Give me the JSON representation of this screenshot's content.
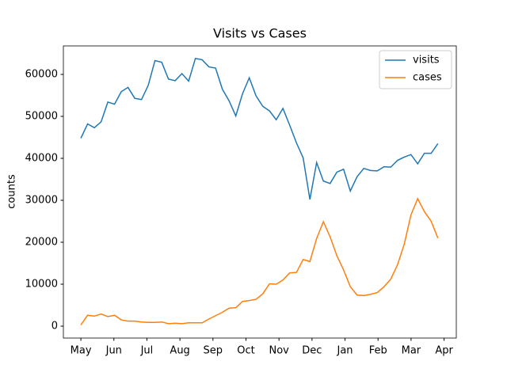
{
  "chart_data": {
    "type": "line",
    "title": "Visits vs Cases",
    "ylabel": "counts",
    "x": [
      0,
      0.204,
      0.408,
      0.612,
      0.816,
      1.02,
      1.224,
      1.428,
      1.632,
      1.836,
      2.04,
      2.244,
      2.448,
      2.652,
      2.856,
      3.06,
      3.264,
      3.468,
      3.672,
      3.876,
      4.08,
      4.284,
      4.488,
      4.692,
      4.896,
      5.1,
      5.304,
      5.508,
      5.712,
      5.916,
      6.12,
      6.324,
      6.528,
      6.732,
      6.936,
      7.14,
      7.344,
      7.548,
      7.752,
      7.956,
      8.16,
      8.364,
      8.568,
      8.772,
      8.976,
      9.18,
      9.384,
      9.588,
      9.792,
      9.996,
      10.2,
      10.404,
      10.608,
      10.812
    ],
    "series": [
      {
        "name": "visits",
        "color": "#1f77b4",
        "values": [
          44800,
          48200,
          47300,
          48700,
          53400,
          52900,
          55900,
          56900,
          54300,
          54000,
          57400,
          63300,
          62900,
          58900,
          58500,
          60200,
          58400,
          63800,
          63500,
          61800,
          61500,
          56500,
          53700,
          50100,
          55400,
          59200,
          54900,
          52400,
          51300,
          49200,
          51900,
          47900,
          43700,
          40100,
          30200,
          39000,
          34600,
          34000,
          36700,
          37400,
          32200,
          35600,
          37600,
          37100,
          37000,
          38000,
          37900,
          39500,
          40300,
          40900,
          38700,
          41200,
          41200,
          43500
        ]
      },
      {
        "name": "cases",
        "color": "#ff7f0e",
        "values": [
          300,
          2600,
          2400,
          2900,
          2300,
          2600,
          1500,
          1200,
          1200,
          1000,
          900,
          900,
          1000,
          600,
          700,
          600,
          800,
          800,
          800,
          1700,
          2500,
          3300,
          4300,
          4400,
          5900,
          6100,
          6400,
          7700,
          10100,
          10000,
          11000,
          12700,
          12800,
          15900,
          15400,
          20900,
          24900,
          21300,
          16800,
          13400,
          9400,
          7400,
          7300,
          7600,
          8000,
          9400,
          11200,
          14600,
          19500,
          26500,
          30400,
          27300,
          25000,
          21000
        ]
      }
    ],
    "xlim": [
      -0.53,
      11.37
    ],
    "xticks": [
      {
        "value": 0,
        "label": "May"
      },
      {
        "value": 1,
        "label": "Jun"
      },
      {
        "value": 2,
        "label": "Jul"
      },
      {
        "value": 3,
        "label": "Aug"
      },
      {
        "value": 4,
        "label": "Sep"
      },
      {
        "value": 5,
        "label": "Oct"
      },
      {
        "value": 6,
        "label": "Nov"
      },
      {
        "value": 7,
        "label": "Dec"
      },
      {
        "value": 8,
        "label": "Jan"
      },
      {
        "value": 9,
        "label": "Feb"
      },
      {
        "value": 10,
        "label": "Mar"
      },
      {
        "value": 11,
        "label": "Apr"
      }
    ],
    "ylim": [
      -2830,
      66790
    ],
    "yticks": [
      0,
      10000,
      20000,
      30000,
      40000,
      50000,
      60000
    ],
    "legend": "upper right"
  }
}
